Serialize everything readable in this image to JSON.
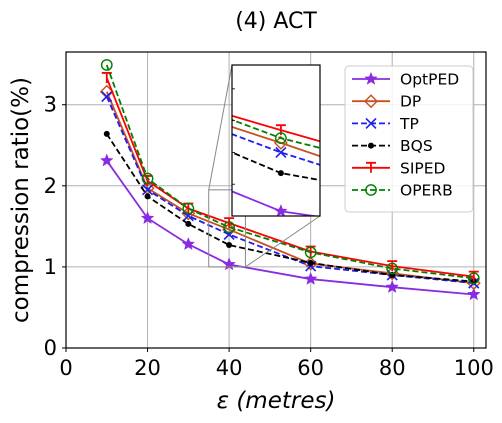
{
  "chart_data": {
    "type": "line",
    "title": "(4) ACT",
    "xlabel_symbol": "ε",
    "xlabel_unit": "(metres)",
    "ylabel": "compression ratio(%)",
    "xlim": [
      0,
      103
    ],
    "ylim": [
      0,
      3.65
    ],
    "xticks": [
      "0",
      "20",
      "40",
      "60",
      "80",
      "100"
    ],
    "yticks": [
      "0",
      "1",
      "2",
      "3"
    ],
    "grid": true,
    "legend_position": "top-right",
    "x": [
      10,
      20,
      30,
      40,
      60,
      80,
      100
    ],
    "series": [
      {
        "name": "OptPED",
        "color": "#8a2be2",
        "dash": "solid",
        "marker": "star",
        "values": [
          2.31,
          1.6,
          1.28,
          1.03,
          0.85,
          0.75,
          0.66
        ]
      },
      {
        "name": "DP",
        "color": "#c8501e",
        "dash": "solid",
        "marker": "diamond",
        "values": [
          3.16,
          1.97,
          1.66,
          1.46,
          1.04,
          0.92,
          0.8
        ]
      },
      {
        "name": "TP",
        "color": "#1e1ef0",
        "dash": "dashed",
        "marker": "x",
        "values": [
          3.1,
          1.95,
          1.63,
          1.4,
          1.01,
          0.9,
          0.8
        ]
      },
      {
        "name": "BQS",
        "color": "#000000",
        "dash": "dashed",
        "marker": "dot",
        "values": [
          2.64,
          1.87,
          1.53,
          1.27,
          1.05,
          0.9,
          0.82
        ]
      },
      {
        "name": "SIPED",
        "color": "#ff0000",
        "dash": "solid",
        "marker": "tri",
        "values": [
          3.33,
          2.06,
          1.72,
          1.54,
          1.19,
          1.01,
          0.88
        ]
      },
      {
        "name": "OPERB",
        "color": "#008000",
        "dash": "dashed",
        "marker": "circle",
        "values": [
          3.49,
          2.09,
          1.72,
          1.49,
          1.18,
          0.98,
          0.86
        ]
      }
    ],
    "inset": {
      "xlim": [
        35,
        44
      ],
      "ylim": [
        1.0,
        1.95
      ],
      "source_box_x": [
        35,
        44
      ],
      "source_box_y": [
        1.0,
        1.95
      ]
    }
  }
}
